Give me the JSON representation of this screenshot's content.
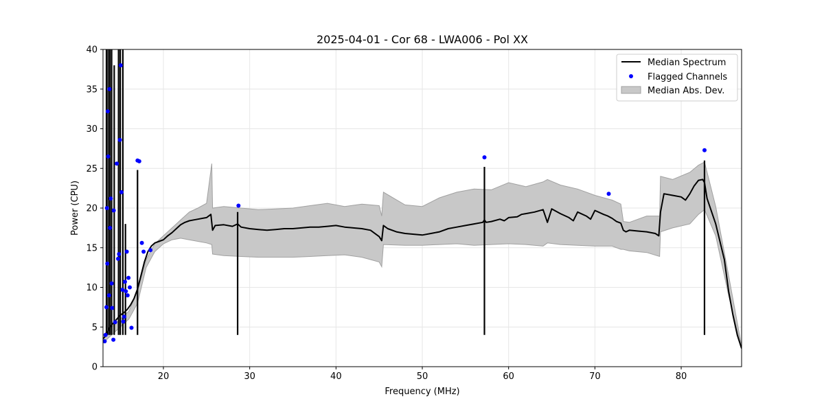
{
  "chart_data": {
    "type": "line",
    "title": "2025-04-01 - Cor 68 - LWA006 - Pol XX",
    "xlabel": "Frequency (MHz)",
    "ylabel": "Power (CPU)",
    "xlim": [
      13.0,
      87.0
    ],
    "ylim": [
      0,
      40
    ],
    "xticks": [
      "20",
      "30",
      "40",
      "50",
      "60",
      "70",
      "80"
    ],
    "yticks": [
      "0",
      "5",
      "10",
      "15",
      "20",
      "25",
      "30",
      "35",
      "40"
    ],
    "grid": true,
    "legend_position": "top-right",
    "colors": {
      "median": "#000000",
      "flagged": "#0000ff",
      "band_fill": "#c8c8c8",
      "band_edge": "#a0a0a0"
    },
    "series": [
      {
        "name": "Median Spectrum",
        "kind": "line",
        "x": [
          13.0,
          13.4,
          13.8,
          14.2,
          14.6,
          15.0,
          15.4,
          15.8,
          16.2,
          16.6,
          17.0,
          17.4,
          17.8,
          18.2,
          18.6,
          19.0,
          19.5,
          20.0,
          20.5,
          21.0,
          21.5,
          22.0,
          22.5,
          23.0,
          23.5,
          24.0,
          24.5,
          25.0,
          25.5,
          25.7,
          26.0,
          27.0,
          28.0,
          28.6,
          29.0,
          30.0,
          31.0,
          32.0,
          33.0,
          34.0,
          35.0,
          36.0,
          37.0,
          38.0,
          39.0,
          40.0,
          41.0,
          42.0,
          43.0,
          44.0,
          45.0,
          45.3,
          45.5,
          46.0,
          47.0,
          48.0,
          49.0,
          50.0,
          51.0,
          52.0,
          53.0,
          54.0,
          55.0,
          56.0,
          57.0,
          57.2,
          57.4,
          58.0,
          59.0,
          59.5,
          60.0,
          61.0,
          61.5,
          62.0,
          63.0,
          64.0,
          64.5,
          65.0,
          66.0,
          67.0,
          67.5,
          68.0,
          69.0,
          69.5,
          70.0,
          71.0,
          71.5,
          72.0,
          72.5,
          73.0,
          73.3,
          73.6,
          74.0,
          75.0,
          76.0,
          77.0,
          77.4,
          77.6,
          78.0,
          79.0,
          80.0,
          80.5,
          81.0,
          81.5,
          82.0,
          82.5,
          82.7,
          83.0,
          84.0,
          85.0,
          85.5,
          86.0,
          86.5,
          87.0
        ],
        "y": [
          3.5,
          4.0,
          5.0,
          5.5,
          6.0,
          6.5,
          6.8,
          7.2,
          7.8,
          8.6,
          9.8,
          11.5,
          13.2,
          14.5,
          15.2,
          15.6,
          15.8,
          16.0,
          16.5,
          16.9,
          17.4,
          17.9,
          18.2,
          18.4,
          18.5,
          18.6,
          18.7,
          18.8,
          19.2,
          17.2,
          17.8,
          17.9,
          17.7,
          18.0,
          17.6,
          17.4,
          17.3,
          17.2,
          17.3,
          17.4,
          17.4,
          17.5,
          17.6,
          17.6,
          17.7,
          17.8,
          17.6,
          17.5,
          17.4,
          17.2,
          16.4,
          15.9,
          17.8,
          17.4,
          17.0,
          16.8,
          16.7,
          16.6,
          16.8,
          17.0,
          17.4,
          17.6,
          17.8,
          18.0,
          18.2,
          18.5,
          18.2,
          18.3,
          18.6,
          18.4,
          18.8,
          18.9,
          19.2,
          19.3,
          19.5,
          19.8,
          18.2,
          19.9,
          19.3,
          18.8,
          18.4,
          19.5,
          19.0,
          18.6,
          19.7,
          19.2,
          19.0,
          18.7,
          18.3,
          18.1,
          17.2,
          17.0,
          17.2,
          17.1,
          17.0,
          16.8,
          16.5,
          19.5,
          21.8,
          21.6,
          21.4,
          21.0,
          21.8,
          22.8,
          23.5,
          23.6,
          23.2,
          21.2,
          18.0,
          13.5,
          9.5,
          6.5,
          4.0,
          2.3
        ],
        "spikes": [
          {
            "x": 13.4,
            "to": 40.0
          },
          {
            "x": 13.6,
            "to": 40.0
          },
          {
            "x": 13.8,
            "to": 40.0
          },
          {
            "x": 14.0,
            "to": 40.0
          },
          {
            "x": 14.3,
            "to": 38.0
          },
          {
            "x": 14.8,
            "to": 40.0
          },
          {
            "x": 15.0,
            "to": 40.0
          },
          {
            "x": 15.3,
            "to": 40.0
          },
          {
            "x": 15.6,
            "to": 18.0
          },
          {
            "x": 17.0,
            "to": 24.8
          },
          {
            "x": 28.6,
            "to": 19.5
          },
          {
            "x": 57.2,
            "to": 25.2
          },
          {
            "x": 82.7,
            "to": 26.0
          }
        ]
      },
      {
        "name": "Median Abs. Dev.",
        "kind": "band",
        "x": [
          13.0,
          14.0,
          15.0,
          16.0,
          17.0,
          18.0,
          19.0,
          20.0,
          21.0,
          22.0,
          23.0,
          24.0,
          25.0,
          25.6,
          25.7,
          27.0,
          29.0,
          31.0,
          33.0,
          35.0,
          37.0,
          39.0,
          41.0,
          43.0,
          45.0,
          45.3,
          45.5,
          48.0,
          50.0,
          52.0,
          54.0,
          56.0,
          58.0,
          60.0,
          62.0,
          64.0,
          64.5,
          66.0,
          68.0,
          70.0,
          72.0,
          73.0,
          73.3,
          74.0,
          76.0,
          77.5,
          77.6,
          79.0,
          81.0,
          82.0,
          82.7,
          84.0,
          85.5,
          87.0
        ],
        "lower": [
          3.0,
          4.0,
          5.0,
          6.0,
          8.0,
          12.5,
          14.5,
          15.5,
          16.0,
          16.2,
          16.0,
          15.8,
          15.6,
          15.4,
          14.2,
          14.0,
          13.9,
          13.8,
          13.8,
          13.8,
          13.9,
          14.0,
          14.1,
          13.8,
          13.2,
          12.6,
          15.4,
          15.3,
          15.3,
          15.4,
          15.5,
          15.3,
          15.4,
          15.5,
          15.4,
          15.2,
          15.6,
          15.4,
          15.3,
          15.2,
          15.2,
          14.8,
          14.8,
          14.6,
          14.4,
          13.9,
          17.0,
          17.5,
          18.0,
          19.2,
          19.8,
          16.5,
          9.0,
          2.3
        ],
        "upper": [
          4.0,
          5.0,
          6.0,
          7.0,
          9.5,
          13.5,
          15.5,
          16.5,
          17.5,
          18.5,
          19.5,
          20.0,
          20.6,
          25.6,
          20.0,
          20.2,
          20.0,
          19.8,
          19.9,
          20.0,
          20.3,
          20.6,
          20.2,
          20.5,
          20.3,
          19.0,
          22.0,
          20.4,
          20.2,
          21.3,
          22.0,
          22.4,
          22.3,
          23.2,
          22.7,
          23.3,
          23.6,
          22.9,
          22.4,
          21.6,
          21.0,
          20.5,
          18.3,
          18.2,
          19.0,
          19.0,
          24.0,
          23.6,
          24.5,
          25.4,
          25.8,
          20.2,
          11.5,
          2.6
        ]
      },
      {
        "name": "Flagged Channels",
        "kind": "scatter",
        "x": [
          13.2,
          13.3,
          13.4,
          13.45,
          13.5,
          13.55,
          13.6,
          13.7,
          13.75,
          13.8,
          13.9,
          14.0,
          14.05,
          14.2,
          14.25,
          14.4,
          14.6,
          14.75,
          14.85,
          14.95,
          15.05,
          15.15,
          15.25,
          15.35,
          15.45,
          15.55,
          15.65,
          15.75,
          15.85,
          15.95,
          16.1,
          16.3,
          17.0,
          17.2,
          17.5,
          17.7,
          18.5,
          28.7,
          57.2,
          71.6,
          82.7
        ],
        "y": [
          3.2,
          4.0,
          7.5,
          20.0,
          13.0,
          32.2,
          26.5,
          9.0,
          35.0,
          17.5,
          21.2,
          10.5,
          7.4,
          3.4,
          19.7,
          5.6,
          25.6,
          13.6,
          14.2,
          28.6,
          38.0,
          22.0,
          9.7,
          5.7,
          6.3,
          10.7,
          9.5,
          14.5,
          9.0,
          11.2,
          10.0,
          4.9,
          26.0,
          25.9,
          15.6,
          14.5,
          14.7,
          20.3,
          26.4,
          21.8,
          27.3
        ]
      }
    ]
  }
}
